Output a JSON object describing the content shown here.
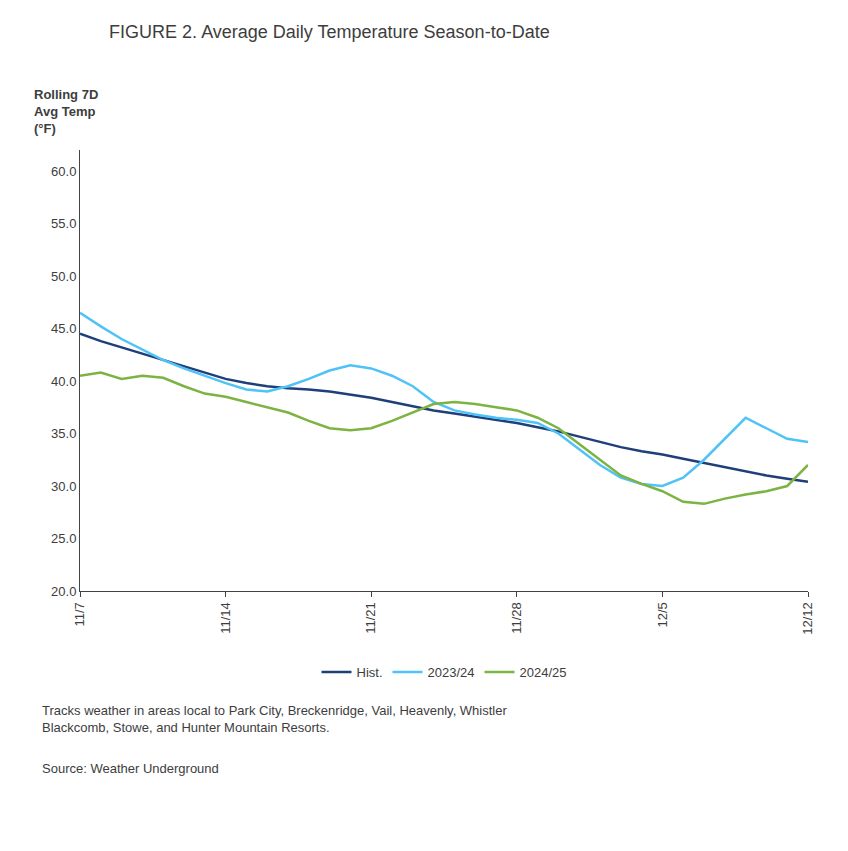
{
  "chart_data": {
    "type": "line",
    "title": "FIGURE 2. Average Daily Temperature Season-to-Date",
    "y_label": "Rolling 7D\nAvg Temp\n(°F)",
    "categories": [
      "11/7",
      null,
      null,
      null,
      null,
      null,
      null,
      "11/14",
      null,
      null,
      null,
      null,
      null,
      null,
      "11/21",
      null,
      null,
      null,
      null,
      null,
      null,
      "11/28",
      null,
      null,
      null,
      null,
      null,
      null,
      "12/5",
      null,
      null,
      null,
      null,
      null,
      null,
      "12/12"
    ],
    "series": [
      {
        "name": "Hist.",
        "color": "#1f3f7a",
        "values": [
          44.5,
          43.8,
          43.2,
          42.6,
          42.0,
          41.4,
          40.8,
          40.2,
          39.8,
          39.5,
          39.3,
          39.2,
          39.0,
          38.7,
          38.4,
          38.0,
          37.6,
          37.2,
          36.9,
          36.6,
          36.3,
          36.0,
          35.6,
          35.2,
          34.7,
          34.2,
          33.7,
          33.3,
          33.0,
          32.6,
          32.2,
          31.8,
          31.4,
          31.0,
          30.7,
          30.4
        ]
      },
      {
        "name": "2023/24",
        "color": "#4fc3f7",
        "values": [
          46.5,
          45.2,
          44.0,
          43.0,
          42.0,
          41.2,
          40.5,
          39.8,
          39.2,
          39.0,
          39.5,
          40.2,
          41.0,
          41.5,
          41.2,
          40.5,
          39.5,
          38.0,
          37.2,
          36.8,
          36.5,
          36.3,
          36.0,
          35.0,
          33.5,
          32.0,
          30.8,
          30.2,
          30.0,
          30.8,
          32.5,
          34.5,
          36.5,
          35.5,
          34.5,
          34.2
        ]
      },
      {
        "name": "2024/25",
        "color": "#7cb342",
        "values": [
          40.5,
          40.8,
          40.2,
          40.5,
          40.3,
          39.5,
          38.8,
          38.5,
          38.0,
          37.5,
          37.0,
          36.2,
          35.5,
          35.3,
          35.5,
          36.2,
          37.0,
          37.8,
          38.0,
          37.8,
          37.5,
          37.2,
          36.5,
          35.5,
          34.0,
          32.5,
          31.0,
          30.2,
          29.5,
          28.5,
          28.3,
          28.8,
          29.2,
          29.5,
          30.0,
          32.0
        ]
      }
    ],
    "ylim": [
      20.0,
      62.0
    ],
    "yticks": [
      {
        "value": 20.0,
        "label": "20.0"
      },
      {
        "value": 25.0,
        "label": "25.0"
      },
      {
        "value": 30.0,
        "label": "30.0"
      },
      {
        "value": 35.0,
        "label": "35.0"
      },
      {
        "value": 40.0,
        "label": "40.0"
      },
      {
        "value": 45.0,
        "label": "45.0"
      },
      {
        "value": 50.0,
        "label": "50.0"
      },
      {
        "value": 55.0,
        "label": "55.0"
      },
      {
        "value": 60.0,
        "label": "60.0"
      }
    ],
    "grid": false,
    "legend": "bottom",
    "annotations": [
      "Tracks weather in areas local to Park City, Breckenridge, Vail, Heavenly, Whistler\nBlackcomb, Stowe, and Hunter Mountain Resorts.",
      "Source: Weather Underground"
    ],
    "color": "#3d3d3d"
  }
}
